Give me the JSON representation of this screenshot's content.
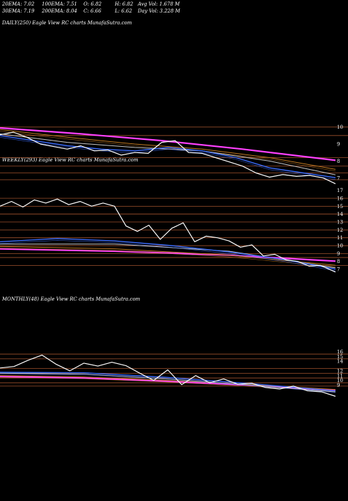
{
  "header": {
    "ema20": "20EMA: 7.02",
    "ema100": "100EMA: 7.51",
    "open": "O: 6.82",
    "high": "H: 6.82",
    "avgvol": "Avg Vol: 1.678  M",
    "ema30": "30EMA: 7.19",
    "ema200": "200EMA: 8.04",
    "close": "C: 6.66",
    "low": "L: 6.62",
    "dayvol": "Day Vol: 3.228  M"
  },
  "colors": {
    "background": "#000000",
    "price": "#ffffff",
    "ema_short": "#3a6cff",
    "ema_mid": "#c8c8c8",
    "ema_long": "#c07820",
    "ema_200": "#ff40ff",
    "grid": "#a0522d"
  },
  "chart_data": [
    {
      "type": "line",
      "label": "DAILY(250) Eagle  View  RC charts MunafaSutra.com",
      "x_units": "session index",
      "price_ticks": [
        10,
        9,
        8,
        7
      ],
      "ylim": [
        6.5,
        10.6
      ],
      "grid_levels": [
        10,
        9.5,
        8.2,
        7.7,
        7.3,
        6.9
      ],
      "series": [
        {
          "role": "price",
          "x": [
            0,
            10,
            20,
            30,
            40,
            50,
            60,
            70,
            80,
            90,
            100,
            110,
            120,
            130,
            140,
            150,
            160,
            170,
            180,
            190,
            200,
            210,
            220,
            230,
            240,
            249
          ],
          "values": [
            9.55,
            9.7,
            9.4,
            9.0,
            8.85,
            8.7,
            8.9,
            8.6,
            8.65,
            8.35,
            8.5,
            8.45,
            9.1,
            9.2,
            8.5,
            8.45,
            8.2,
            7.95,
            7.7,
            7.3,
            7.05,
            7.2,
            7.1,
            7.15,
            7.0,
            6.66
          ]
        },
        {
          "role": "ema_short",
          "x": [
            0,
            25,
            50,
            75,
            100,
            125,
            150,
            175,
            200,
            225,
            249
          ],
          "values": [
            9.5,
            9.2,
            8.9,
            8.7,
            8.6,
            8.8,
            8.6,
            8.2,
            7.6,
            7.3,
            7.02
          ]
        },
        {
          "role": "ema_mid",
          "x": [
            0,
            50,
            100,
            150,
            200,
            249
          ],
          "values": [
            9.6,
            9.1,
            8.8,
            8.6,
            8.0,
            7.19
          ]
        },
        {
          "role": "ema_long",
          "x": [
            0,
            50,
            100,
            150,
            200,
            249
          ],
          "values": [
            9.85,
            9.4,
            9.0,
            8.7,
            8.2,
            7.51
          ]
        },
        {
          "role": "ema_200",
          "x": [
            0,
            60,
            120,
            180,
            249
          ],
          "values": [
            9.95,
            9.6,
            9.2,
            8.7,
            8.04
          ]
        }
      ]
    },
    {
      "type": "line",
      "label": "WEEKLY(293) Eagle  View  RC charts MunafaSutra.com",
      "x_units": "week index",
      "price_ticks": [
        17,
        16,
        15,
        14,
        13,
        12,
        11,
        10,
        9,
        8,
        7
      ],
      "ylim": [
        6.3,
        17.5
      ],
      "grid_levels": [
        16,
        15,
        14,
        13,
        12,
        11,
        10,
        9,
        8.5,
        7.5
      ],
      "series": [
        {
          "role": "price",
          "x": [
            0,
            10,
            20,
            30,
            40,
            50,
            60,
            70,
            80,
            90,
            100,
            110,
            120,
            130,
            140,
            150,
            160,
            170,
            180,
            190,
            200,
            210,
            220,
            230,
            240,
            250,
            260,
            270,
            280,
            293
          ],
          "values": [
            15.0,
            15.6,
            14.9,
            15.8,
            15.4,
            15.9,
            15.2,
            15.6,
            15.0,
            15.4,
            15.0,
            12.5,
            11.8,
            12.6,
            10.8,
            12.2,
            12.9,
            10.5,
            11.2,
            11.0,
            10.6,
            9.8,
            10.1,
            8.7,
            8.9,
            8.2,
            8.0,
            7.4,
            7.5,
            6.66
          ]
        },
        {
          "role": "ema_short",
          "x": [
            0,
            50,
            100,
            150,
            200,
            250,
            293
          ],
          "values": [
            10.5,
            10.9,
            10.6,
            10.0,
            9.2,
            8.2,
            7.02
          ]
        },
        {
          "role": "ema_mid",
          "x": [
            0,
            100,
            200,
            293
          ],
          "values": [
            10.2,
            10.2,
            9.3,
            7.19
          ]
        },
        {
          "role": "ema_long",
          "x": [
            0,
            100,
            200,
            293
          ],
          "values": [
            9.9,
            9.6,
            8.8,
            7.51
          ]
        },
        {
          "role": "ema_200",
          "x": [
            0,
            100,
            200,
            293
          ],
          "values": [
            9.6,
            9.3,
            8.8,
            8.04
          ]
        }
      ]
    },
    {
      "type": "line",
      "label": "MONTHLY(48) Eagle  View  RC charts MunafaSutra.com",
      "x_units": "month index",
      "price_ticks": [
        16,
        15,
        14,
        12,
        11,
        10,
        9
      ],
      "ylim": [
        6.3,
        16.8
      ],
      "grid_levels": [
        15.5,
        14.5,
        12.5,
        11.5,
        10.5,
        9.5,
        8.8
      ],
      "series": [
        {
          "role": "price",
          "x": [
            0,
            2,
            4,
            6,
            8,
            10,
            12,
            14,
            16,
            18,
            20,
            22,
            24,
            26,
            28,
            30,
            32,
            34,
            36,
            38,
            40,
            42,
            44,
            46,
            48
          ],
          "values": [
            12.6,
            12.9,
            14.2,
            15.3,
            13.4,
            12.0,
            13.6,
            13.0,
            13.8,
            13.1,
            11.5,
            10.0,
            12.2,
            9.1,
            11.0,
            9.5,
            10.3,
            9.2,
            9.4,
            8.5,
            8.2,
            8.8,
            7.8,
            7.6,
            6.66
          ]
        },
        {
          "role": "ema_short",
          "x": [
            0,
            12,
            24,
            36,
            48
          ],
          "values": [
            11.7,
            11.6,
            10.6,
            9.3,
            7.8
          ]
        },
        {
          "role": "ema_mid",
          "x": [
            0,
            12,
            24,
            36,
            48
          ],
          "values": [
            11.5,
            11.3,
            10.3,
            9.0,
            7.6
          ]
        },
        {
          "role": "ema_long",
          "x": [
            0,
            12,
            24,
            36,
            48
          ],
          "values": [
            11.0,
            10.7,
            10.0,
            9.1,
            8.1
          ]
        },
        {
          "role": "ema_200",
          "x": [
            0,
            12,
            24,
            36,
            48
          ],
          "values": [
            10.8,
            10.5,
            9.8,
            9.0,
            7.9
          ]
        }
      ]
    }
  ]
}
